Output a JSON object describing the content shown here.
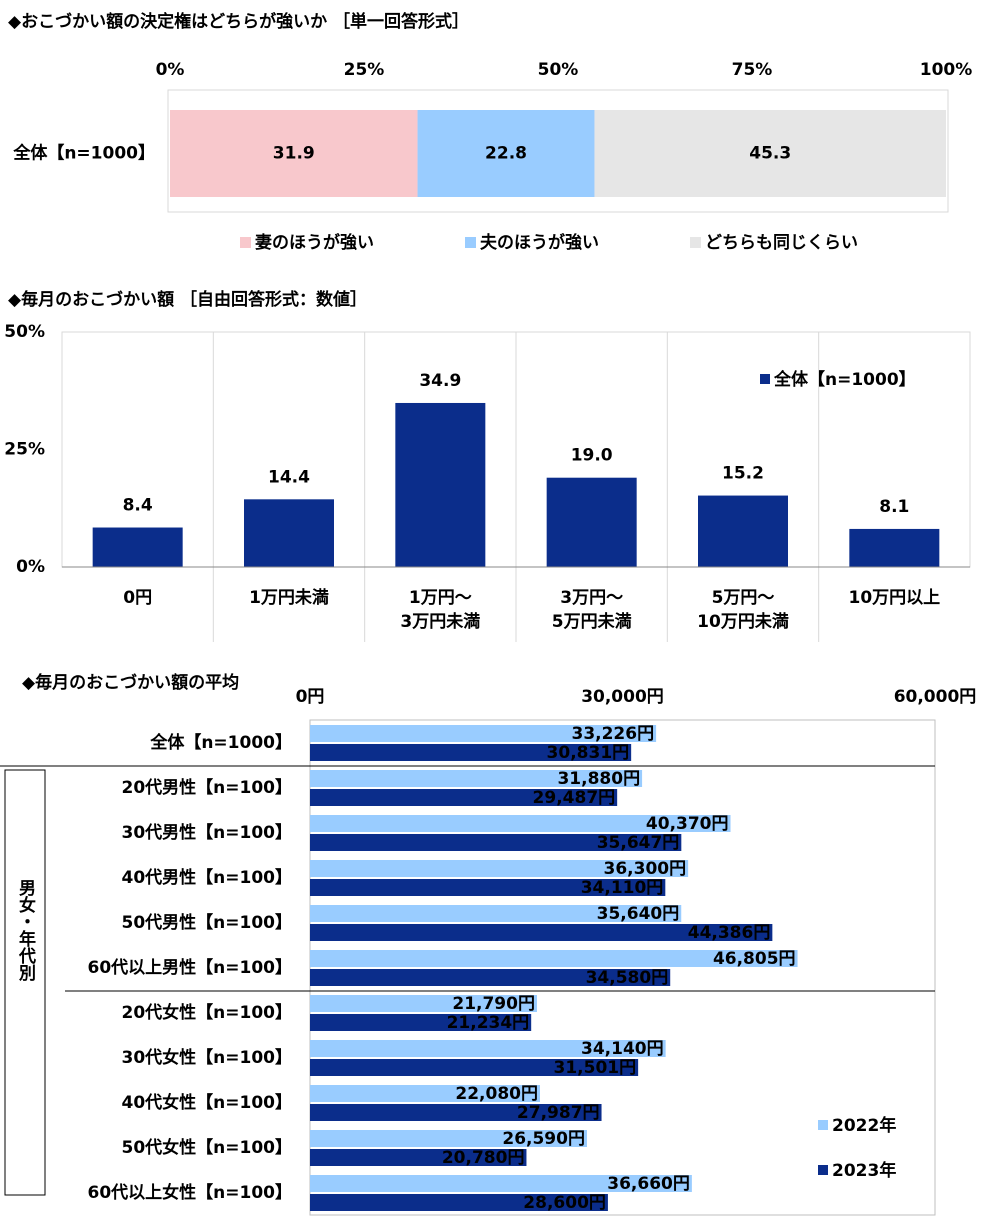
{
  "chart_data": [
    {
      "type": "stacked_barh",
      "title": "◆おこづかい額の決定権はどちらが強いか ［単一回答形式］",
      "categories": [
        "全体【n=1000】"
      ],
      "series": [
        {
          "name": "妻のほうが強い",
          "color": "#f8c8cc",
          "values": [
            31.9
          ]
        },
        {
          "name": "夫のほうが強い",
          "color": "#99ccff",
          "values": [
            22.8
          ]
        },
        {
          "name": "どちらも同じくらい",
          "color": "#e6e6e6",
          "values": [
            45.3
          ]
        }
      ],
      "xlim": [
        0,
        100
      ],
      "xticks": [
        {
          "value": 0,
          "label": "0%"
        },
        {
          "value": 25,
          "label": "25%"
        },
        {
          "value": 50,
          "label": "50%"
        },
        {
          "value": 75,
          "label": "75%"
        },
        {
          "value": 100,
          "label": "100%"
        }
      ],
      "legend": "bottom"
    },
    {
      "type": "bar",
      "title": "◆毎月のおこづかい額 ［自由回答形式：数値］",
      "categories": [
        "0円",
        "1万円未満",
        "1万円～\n3万円未満",
        "3万円～\n5万円未満",
        "5万円～\n10万円未満",
        "10万円以上"
      ],
      "series": [
        {
          "name": "全体【n=1000】",
          "color": "#0b2d8b",
          "values": [
            8.4,
            14.4,
            34.9,
            19.0,
            15.2,
            8.1
          ],
          "value_labels": [
            "8.4",
            "14.4",
            "34.9",
            "19.0",
            "15.2",
            "8.1"
          ]
        }
      ],
      "ylim": [
        0,
        50
      ],
      "yticks": [
        {
          "value": 0,
          "label": "0%"
        },
        {
          "value": 25,
          "label": "25%"
        },
        {
          "value": 50,
          "label": "50%"
        }
      ],
      "legend": "upper right"
    },
    {
      "type": "barh",
      "title": "◆毎月のおこづかい額の平均",
      "group_label": "男女・年代別",
      "categories": [
        "全体【n=1000】",
        "20代男性【n=100】",
        "30代男性【n=100】",
        "40代男性【n=100】",
        "50代男性【n=100】",
        "60代以上男性【n=100】",
        "20代女性【n=100】",
        "30代女性【n=100】",
        "40代女性【n=100】",
        "50代女性【n=100】",
        "60代以上女性【n=100】"
      ],
      "series": [
        {
          "name": "2022年",
          "color": "#99ccff",
          "values": [
            33226,
            31880,
            40370,
            36300,
            35640,
            46805,
            21790,
            34140,
            22080,
            26590,
            36660
          ],
          "value_labels": [
            "33,226円",
            "31,880円",
            "40,370円",
            "36,300円",
            "35,640円",
            "46,805円",
            "21,790円",
            "34,140円",
            "22,080円",
            "26,590円",
            "36,660円"
          ]
        },
        {
          "name": "2023年",
          "color": "#0b2d8b",
          "values": [
            30831,
            29487,
            35647,
            34110,
            44386,
            34580,
            21234,
            31501,
            27987,
            20780,
            28600
          ],
          "value_labels": [
            "30,831円",
            "29,487円",
            "35,647円",
            "34,110円",
            "44,386円",
            "34,580円",
            "21,234円",
            "31,501円",
            "27,987円",
            "20,780円",
            "28,600円"
          ]
        }
      ],
      "xlim": [
        0,
        60000
      ],
      "xticks": [
        {
          "value": 0,
          "label": "0円"
        },
        {
          "value": 30000,
          "label": "30,000円"
        },
        {
          "value": 60000,
          "label": "60,000円"
        }
      ],
      "legend": "lower right"
    }
  ]
}
